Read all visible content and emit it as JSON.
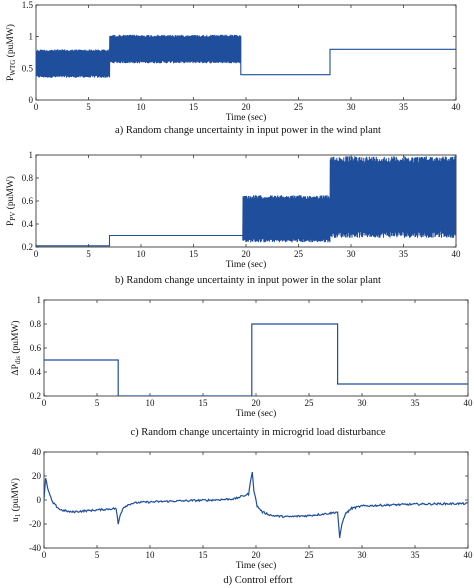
{
  "chart_data": [
    {
      "type": "line",
      "caption": "a) Random change uncertainty in input power in the wind plant",
      "xlabel": "Time (sec)",
      "ylabel_main": "P",
      "ylabel_sub": "WTG",
      "ylabel_unit": "(puMW)",
      "xlim": [
        0,
        40
      ],
      "ylim": [
        0,
        1.5
      ],
      "xticks": [
        "0",
        "5",
        "10",
        "15",
        "20",
        "25",
        "30",
        "35",
        "40"
      ],
      "yticks": [
        "0",
        "0.5",
        "1",
        "1.5"
      ],
      "color": "#1f4e9c",
      "segments": [
        {
          "t0": 0,
          "t1": 7,
          "lo": 0.35,
          "hi": 0.8
        },
        {
          "t0": 7,
          "t1": 19.5,
          "lo": 0.58,
          "hi": 1.03
        },
        {
          "t0": 19.5,
          "t1": 28,
          "value": 0.4
        },
        {
          "t0": 28,
          "t1": 40,
          "value": 0.8
        }
      ]
    },
    {
      "type": "line",
      "caption": "b) Random change uncertainty in input power in the solar plant",
      "xlabel": "Time (sec)",
      "ylabel_main": "P",
      "ylabel_sub": "PV",
      "ylabel_unit": "(puMW)",
      "xlim": [
        0,
        40
      ],
      "ylim": [
        0.2,
        1
      ],
      "xticks": [
        "0",
        "5",
        "10",
        "15",
        "20",
        "25",
        "30",
        "35",
        "40"
      ],
      "yticks": [
        "0.2",
        "0.4",
        "0.6",
        "0.8",
        "1"
      ],
      "color": "#1f4e9c",
      "segments": [
        {
          "t0": 0,
          "t1": 7,
          "value": 0.21
        },
        {
          "t0": 7,
          "t1": 19.7,
          "value": 0.3
        },
        {
          "t0": 19.7,
          "t1": 28,
          "lo": 0.24,
          "hi": 0.65
        },
        {
          "t0": 28,
          "t1": 40,
          "lo": 0.28,
          "hi": 0.99
        }
      ]
    },
    {
      "type": "line",
      "caption": "c) Random change uncertainty in microgrid load disturbance",
      "xlabel": "Time (sec)",
      "ylabel_main": "ΔP",
      "ylabel_sub": "dis",
      "ylabel_unit": "(puMW)",
      "xlim": [
        0,
        40
      ],
      "ylim": [
        0.2,
        1
      ],
      "xticks": [
        "0",
        "5",
        "10",
        "15",
        "20",
        "25",
        "30",
        "35",
        "40"
      ],
      "yticks": [
        "0.2",
        "0.4",
        "0.6",
        "0.8",
        "1"
      ],
      "color": "#1f4e9c",
      "x": [
        0,
        7,
        7,
        19.6,
        19.6,
        27.7,
        27.7,
        40
      ],
      "y": [
        0.5,
        0.5,
        0.2,
        0.2,
        0.8,
        0.8,
        0.3,
        0.3
      ]
    },
    {
      "type": "line",
      "caption": "d) Control effort",
      "xlabel": "Time (sec)",
      "ylabel_main": "u",
      "ylabel_sub": "1",
      "ylabel_unit": "(puMW)",
      "xlim": [
        0,
        40
      ],
      "ylim": [
        -40,
        40
      ],
      "xticks": [
        "0",
        "5",
        "10",
        "15",
        "20",
        "25",
        "30",
        "35",
        "40"
      ],
      "yticks": [
        "-40",
        "-20",
        "0",
        "20",
        "40"
      ],
      "color": "#1f4e9c",
      "x": [
        0,
        0.15,
        0.4,
        0.8,
        1.5,
        2.5,
        4,
        5.5,
        6.8,
        7.0,
        7.2,
        7.5,
        8.2,
        9,
        10.5,
        12,
        14,
        16,
        18,
        19.3,
        19.65,
        19.8,
        20.1,
        20.6,
        21.5,
        23,
        25,
        27,
        27.7,
        27.9,
        28.1,
        28.4,
        29,
        30,
        31.5,
        33,
        35,
        37,
        40
      ],
      "y": [
        0,
        18,
        8,
        -2,
        -8,
        -10,
        -9,
        -8,
        -7,
        -20,
        -12,
        -6,
        -3,
        -2,
        -1.5,
        -1,
        -0.5,
        0,
        1,
        5,
        24,
        8,
        -5,
        -10,
        -13,
        -14,
        -13,
        -11,
        -10,
        -32,
        -20,
        -12,
        -7,
        -5,
        -4.5,
        -4,
        -3.5,
        -3.2,
        -3
      ]
    }
  ]
}
